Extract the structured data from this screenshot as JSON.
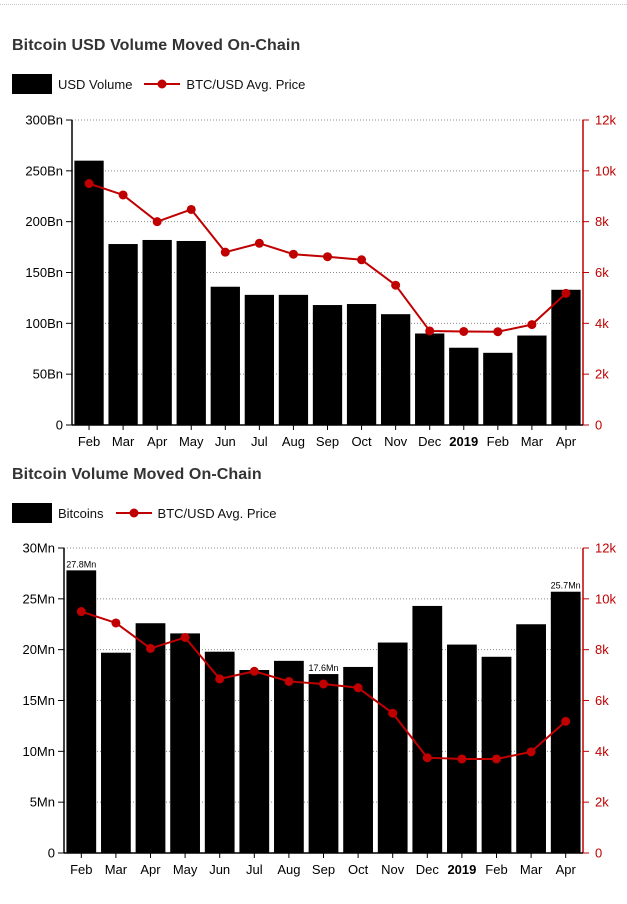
{
  "chart_data": [
    {
      "type": "bar",
      "title": "Bitcoin USD Volume Moved On-Chain",
      "legend": [
        "USD Volume",
        "BTC/USD Avg. Price"
      ],
      "categories": [
        "Feb",
        "Mar",
        "Apr",
        "May",
        "Jun",
        "Jul",
        "Aug",
        "Sep",
        "Oct",
        "Nov",
        "Dec",
        "2019",
        "Feb",
        "Mar",
        "Apr"
      ],
      "bar_labels": [
        "",
        "",
        "",
        "",
        "",
        "",
        "",
        "",
        "",
        "",
        "",
        "",
        "",
        "",
        ""
      ],
      "series": [
        {
          "name": "USD Volume",
          "type": "bar",
          "axis": "left",
          "values": [
            260,
            178,
            182,
            181,
            136,
            128,
            128,
            118,
            119,
            109,
            90,
            76,
            71,
            88,
            133
          ]
        },
        {
          "name": "BTC/USD Avg. Price",
          "type": "line",
          "axis": "right",
          "values": [
            9500,
            9050,
            8000,
            8480,
            6800,
            7150,
            6720,
            6620,
            6500,
            5500,
            3700,
            3680,
            3670,
            3950,
            5180
          ]
        }
      ],
      "yleft": {
        "lim": [
          0,
          300
        ],
        "ticks": [
          0,
          50,
          100,
          150,
          200,
          250,
          300
        ],
        "tick_labels": [
          "0",
          "50Bn",
          "100Bn",
          "150Bn",
          "200Bn",
          "250Bn",
          "300Bn"
        ]
      },
      "yright": {
        "lim": [
          0,
          12000
        ],
        "ticks": [
          0,
          2000,
          4000,
          6000,
          8000,
          10000,
          12000
        ],
        "tick_labels": [
          "0",
          "2k",
          "4k",
          "6k",
          "8k",
          "10k",
          "12k"
        ]
      },
      "grid": true,
      "legend_position": "top-left"
    },
    {
      "type": "bar",
      "title": "Bitcoin Volume Moved On-Chain",
      "legend": [
        "Bitcoins",
        "BTC/USD Avg. Price"
      ],
      "categories": [
        "Feb",
        "Mar",
        "Apr",
        "May",
        "Jun",
        "Jul",
        "Aug",
        "Sep",
        "Oct",
        "Nov",
        "Dec",
        "2019",
        "Feb",
        "Mar",
        "Apr"
      ],
      "bar_labels": [
        "27.8Mn",
        "",
        "",
        "",
        "",
        "",
        "",
        "17.6Mn",
        "",
        "",
        "",
        "",
        "",
        "",
        "25.7Mn"
      ],
      "series": [
        {
          "name": "Bitcoins",
          "type": "bar",
          "axis": "left",
          "values": [
            27.8,
            19.7,
            22.6,
            21.6,
            19.8,
            18.0,
            18.9,
            17.6,
            18.3,
            20.7,
            24.3,
            20.5,
            19.3,
            22.5,
            25.7
          ]
        },
        {
          "name": "BTC/USD Avg. Price",
          "type": "line",
          "axis": "right",
          "values": [
            9500,
            9050,
            8050,
            8480,
            6850,
            7150,
            6750,
            6650,
            6500,
            5500,
            3750,
            3700,
            3700,
            3980,
            5180
          ]
        }
      ],
      "yleft": {
        "lim": [
          0,
          30
        ],
        "ticks": [
          0,
          5,
          10,
          15,
          20,
          25,
          30
        ],
        "tick_labels": [
          "0",
          "5Mn",
          "10Mn",
          "15Mn",
          "20Mn",
          "25Mn",
          "30Mn"
        ]
      },
      "yright": {
        "lim": [
          0,
          12000
        ],
        "ticks": [
          0,
          2000,
          4000,
          6000,
          8000,
          10000,
          12000
        ],
        "tick_labels": [
          "0",
          "2k",
          "4k",
          "6k",
          "8k",
          "10k",
          "12k"
        ]
      },
      "grid": true,
      "legend_position": "top-left"
    }
  ],
  "colors": {
    "bar": "#000000",
    "line": "#c00000",
    "axis": "#000000",
    "right_axis": "#c00000",
    "grid": "#8a8a8a"
  }
}
